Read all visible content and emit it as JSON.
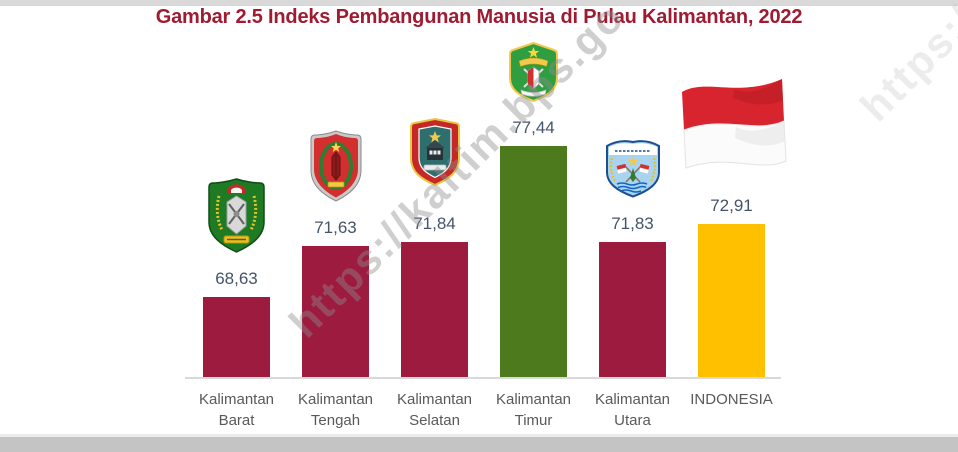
{
  "figure": {
    "title": "Gambar 2.5 Indeks Pembangunan Manusia di Pulau Kalimantan, 2022",
    "title_color": "#9E1B32",
    "watermark_text": "https://kaltim.bps.go",
    "watermark_fragment": "https://"
  },
  "chart_data": {
    "type": "bar",
    "title": "Gambar 2.5 Indeks Pembangunan Manusia di Pulau Kalimantan, 2022",
    "categories": [
      "Kalimantan Barat",
      "Kalimantan Tengah",
      "Kalimantan Selatan",
      "Kalimantan Timur",
      "Kalimantan Utara",
      "INDONESIA"
    ],
    "values": [
      68.63,
      71.63,
      71.84,
      77.44,
      71.83,
      72.91
    ],
    "value_labels": [
      "68,63",
      "71,63",
      "71,84",
      "77,44",
      "71,83",
      "72,91"
    ],
    "bar_colors": [
      "#9e1b40",
      "#9e1b40",
      "#9e1b40",
      "#4d7a1d",
      "#9e1b40",
      "#ffc000"
    ],
    "xlabel": "",
    "ylabel": "",
    "ylim": [
      64,
      78
    ],
    "grid": false,
    "legend": "none",
    "annotations": "Provincial coat of arms above each province bar; Indonesian flag above the INDONESIA bar; diagonal BPS watermark across chart"
  },
  "columns": [
    {
      "line1": "Kalimantan",
      "line2": "Barat",
      "value_label": "68,63",
      "emblem": "kalimantan-barat-coat-of-arms"
    },
    {
      "line1": "Kalimantan",
      "line2": "Tengah",
      "value_label": "71,63",
      "emblem": "kalimantan-tengah-coat-of-arms"
    },
    {
      "line1": "Kalimantan",
      "line2": "Selatan",
      "value_label": "71,84",
      "emblem": "kalimantan-selatan-coat-of-arms"
    },
    {
      "line1": "Kalimantan",
      "line2": "Timur",
      "value_label": "77,44",
      "emblem": "kalimantan-timur-coat-of-arms"
    },
    {
      "line1": "Kalimantan",
      "line2": "Utara",
      "value_label": "71,83",
      "emblem": "kalimantan-utara-coat-of-arms"
    },
    {
      "line1": "INDONESIA",
      "line2": "",
      "value_label": "72,91",
      "emblem": "indonesia-flag"
    }
  ],
  "colors": {
    "bar_maroon": "#9e1b40",
    "bar_green": "#4d7a1d",
    "bar_yellow": "#ffc000",
    "axis_line": "#d9d9d9",
    "value_label_text": "#44546a",
    "category_label_text": "#595959",
    "top_strip": "#d9d9d9",
    "bottom_strip": "#c4c4c4"
  }
}
